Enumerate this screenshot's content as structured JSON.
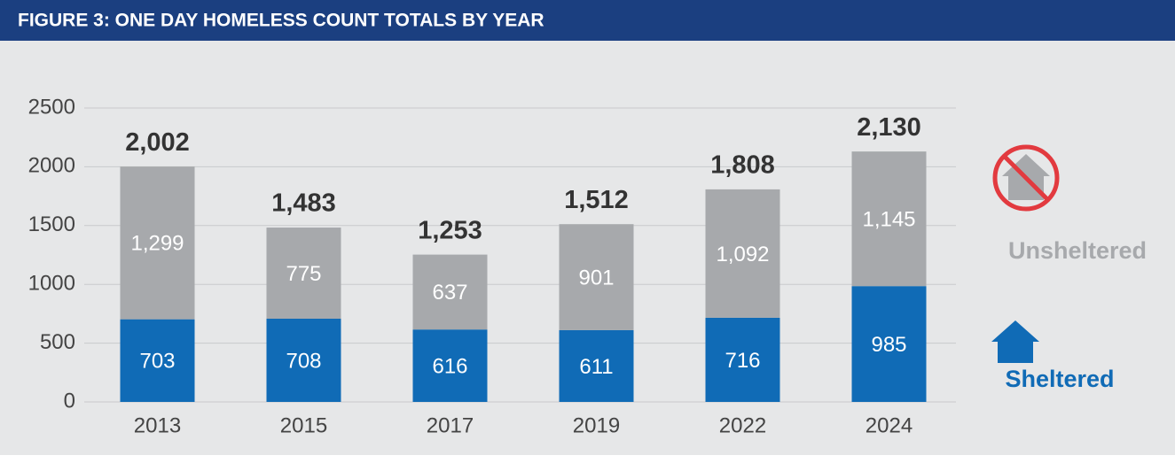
{
  "chart_data": {
    "type": "stacked_bar",
    "title": "FIGURE 3: ONE DAY HOMELESS COUNT TOTALS BY YEAR",
    "categories": [
      "2013",
      "2015",
      "2017",
      "2019",
      "2022",
      "2024"
    ],
    "series": [
      {
        "name": "Sheltered",
        "color": "#106bb6",
        "values": [
          703,
          708,
          616,
          611,
          716,
          985
        ],
        "value_labels": [
          "703",
          "708",
          "616",
          "611",
          "716",
          "985"
        ]
      },
      {
        "name": "Unsheltered",
        "color": "#a7a9ac",
        "values": [
          1299,
          775,
          637,
          901,
          1092,
          1145
        ],
        "value_labels": [
          "1,299",
          "775",
          "637",
          "901",
          "1,092",
          "1,145"
        ]
      }
    ],
    "totals": [
      2002,
      1483,
      1253,
      1512,
      1808,
      2130
    ],
    "total_labels": [
      "2,002",
      "1,483",
      "1,253",
      "1,512",
      "1,808",
      "2,130"
    ],
    "ylim": [
      0,
      2500
    ],
    "yticks": [
      0,
      500,
      1000,
      1500,
      2000,
      2500
    ],
    "grid": true
  }
}
